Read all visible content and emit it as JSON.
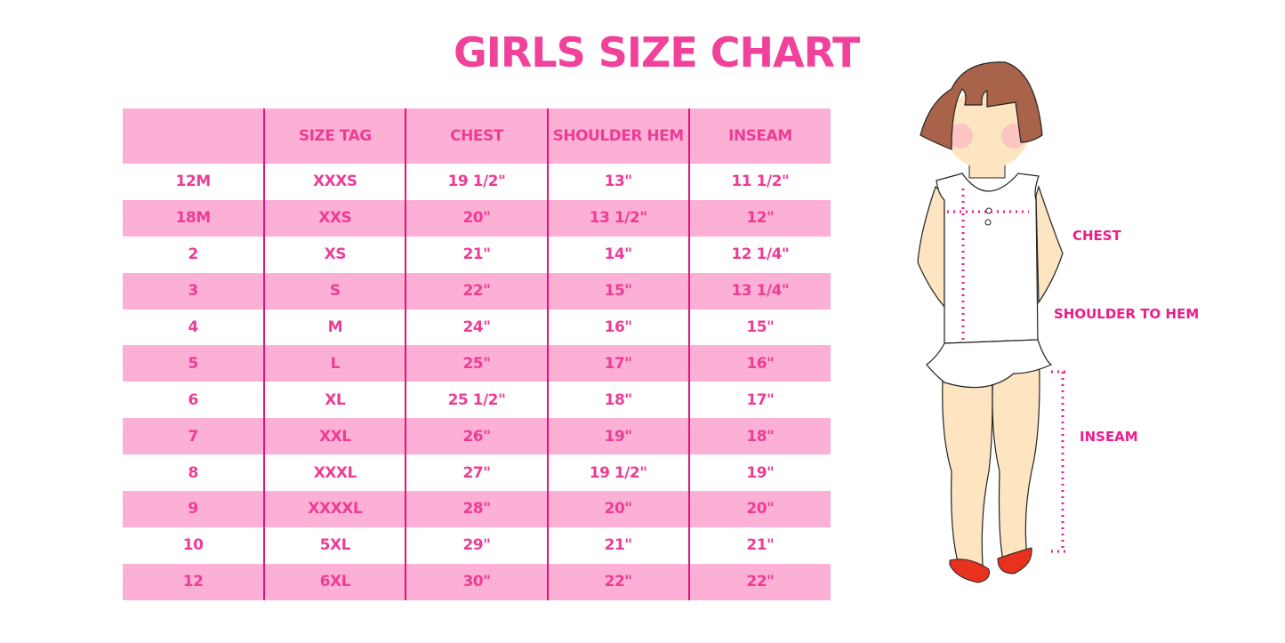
{
  "title": "GIRLS SIZE CHART",
  "table": {
    "headers": [
      "",
      "SIZE TAG",
      "CHEST",
      "SHOULDER HEM",
      "INSEAM"
    ],
    "rows": [
      [
        "12M",
        "XXXS",
        "19 1/2\"",
        "13\"",
        "11 1/2\""
      ],
      [
        "18M",
        "XXS",
        "20\"",
        "13 1/2\"",
        "12\""
      ],
      [
        "2",
        "XS",
        "21\"",
        "14\"",
        "12 1/4\""
      ],
      [
        "3",
        "S",
        "22\"",
        "15\"",
        "13 1/4\""
      ],
      [
        "4",
        "M",
        "24\"",
        "16\"",
        "15\""
      ],
      [
        "5",
        "L",
        "25\"",
        "17\"",
        "16\""
      ],
      [
        "6",
        "XL",
        "25 1/2\"",
        "18\"",
        "17\""
      ],
      [
        "7",
        "XXL",
        "26\"",
        "19\"",
        "18\""
      ],
      [
        "8",
        "XXXL",
        "27\"",
        "19 1/2\"",
        "19\""
      ],
      [
        "9",
        "XXXXL",
        "28\"",
        "20\"",
        "20\""
      ],
      [
        "10",
        "5XL",
        "29\"",
        "21\"",
        "21\""
      ],
      [
        "12",
        "6XL",
        "30\"",
        "22\"",
        "22\""
      ]
    ]
  },
  "figure": {
    "labels": {
      "chest": "CHEST",
      "shoulder": "SHOULDER TO HEM",
      "inseam": "INSEAM"
    }
  },
  "colors": {
    "accent": "#ec3d96",
    "row_pink": "#fdb0d5",
    "divider": "#e4127e"
  }
}
